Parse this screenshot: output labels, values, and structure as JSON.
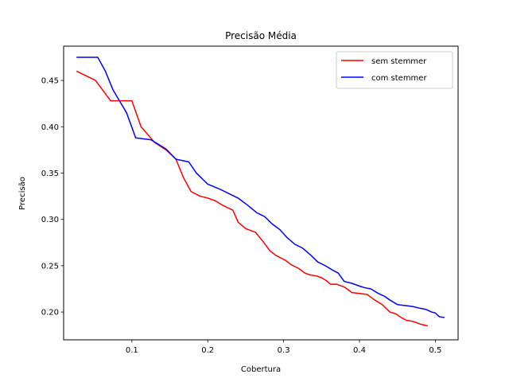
{
  "chart_data": {
    "type": "line",
    "title": "Precisão Média",
    "xlabel": "Cobertura",
    "ylabel": "Precisão",
    "xlim": [
      0.01,
      0.53
    ],
    "ylim": [
      0.17,
      0.487
    ],
    "xticks": [
      0.1,
      0.2,
      0.3,
      0.4,
      0.5
    ],
    "xtick_labels": [
      "0.1",
      "0.2",
      "0.3",
      "0.4",
      "0.5"
    ],
    "yticks": [
      0.2,
      0.25,
      0.3,
      0.35,
      0.4,
      0.45
    ],
    "ytick_labels": [
      "0.20",
      "0.25",
      "0.30",
      "0.35",
      "0.40",
      "0.45"
    ],
    "grid": false,
    "legend_position": "top-right",
    "series": [
      {
        "name": "sem stemmer",
        "color": "#ff0000",
        "x": [
          0.027,
          0.052,
          0.072,
          0.085,
          0.1,
          0.112,
          0.13,
          0.145,
          0.158,
          0.168,
          0.178,
          0.19,
          0.2,
          0.21,
          0.22,
          0.233,
          0.24,
          0.25,
          0.263,
          0.272,
          0.282,
          0.29,
          0.302,
          0.31,
          0.32,
          0.328,
          0.335,
          0.343,
          0.35,
          0.356,
          0.362,
          0.37,
          0.38,
          0.39,
          0.4,
          0.41,
          0.42,
          0.43,
          0.44,
          0.448,
          0.455,
          0.462,
          0.47,
          0.48,
          0.49
        ],
        "y": [
          0.46,
          0.45,
          0.428,
          0.428,
          0.428,
          0.4,
          0.383,
          0.375,
          0.365,
          0.345,
          0.33,
          0.325,
          0.323,
          0.32,
          0.315,
          0.31,
          0.297,
          0.29,
          0.286,
          0.277,
          0.266,
          0.261,
          0.256,
          0.251,
          0.247,
          0.242,
          0.24,
          0.239,
          0.237,
          0.234,
          0.23,
          0.23,
          0.227,
          0.221,
          0.22,
          0.219,
          0.213,
          0.208,
          0.2,
          0.198,
          0.194,
          0.191,
          0.19,
          0.187,
          0.185
        ]
      },
      {
        "name": "com stemmer",
        "color": "#0000ff",
        "x": [
          0.027,
          0.05,
          0.055,
          0.065,
          0.075,
          0.093,
          0.105,
          0.125,
          0.145,
          0.158,
          0.175,
          0.185,
          0.2,
          0.215,
          0.225,
          0.24,
          0.253,
          0.265,
          0.275,
          0.285,
          0.295,
          0.305,
          0.315,
          0.325,
          0.335,
          0.345,
          0.355,
          0.363,
          0.372,
          0.38,
          0.39,
          0.4,
          0.408,
          0.415,
          0.425,
          0.433,
          0.44,
          0.45,
          0.46,
          0.47,
          0.48,
          0.487,
          0.495,
          0.5,
          0.505,
          0.512
        ],
        "y": [
          0.475,
          0.475,
          0.475,
          0.46,
          0.44,
          0.415,
          0.388,
          0.386,
          0.376,
          0.365,
          0.362,
          0.35,
          0.338,
          0.333,
          0.329,
          0.323,
          0.315,
          0.307,
          0.303,
          0.295,
          0.289,
          0.28,
          0.273,
          0.269,
          0.262,
          0.254,
          0.25,
          0.246,
          0.242,
          0.233,
          0.231,
          0.228,
          0.226,
          0.225,
          0.22,
          0.217,
          0.213,
          0.208,
          0.207,
          0.206,
          0.204,
          0.203,
          0.2,
          0.199,
          0.195,
          0.194
        ]
      }
    ]
  }
}
